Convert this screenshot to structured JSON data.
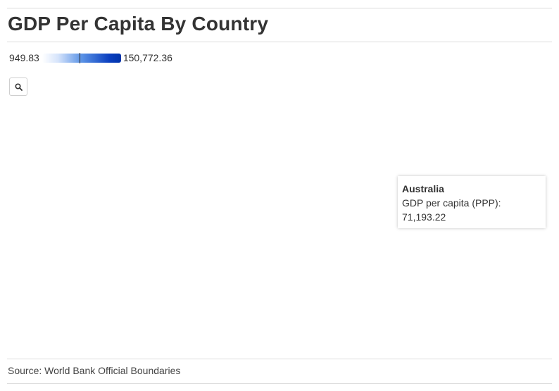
{
  "title": "GDP Per Capita By Country",
  "legend": {
    "min_label": "949.83",
    "max_label": "150,772.36",
    "min_value": 949.83,
    "max_value": 150772.36,
    "marker_value": 71193.22,
    "color_low": "#ffffff",
    "color_high": "#0033aa"
  },
  "controls": {
    "zoom_icon": "search-icon"
  },
  "tooltip": {
    "country": "Australia",
    "metric_label": "GDP per capita (PPP):",
    "metric_value": "71,193.22",
    "value": 71193.22
  },
  "source": "Source: World Bank Official Boundaries"
}
